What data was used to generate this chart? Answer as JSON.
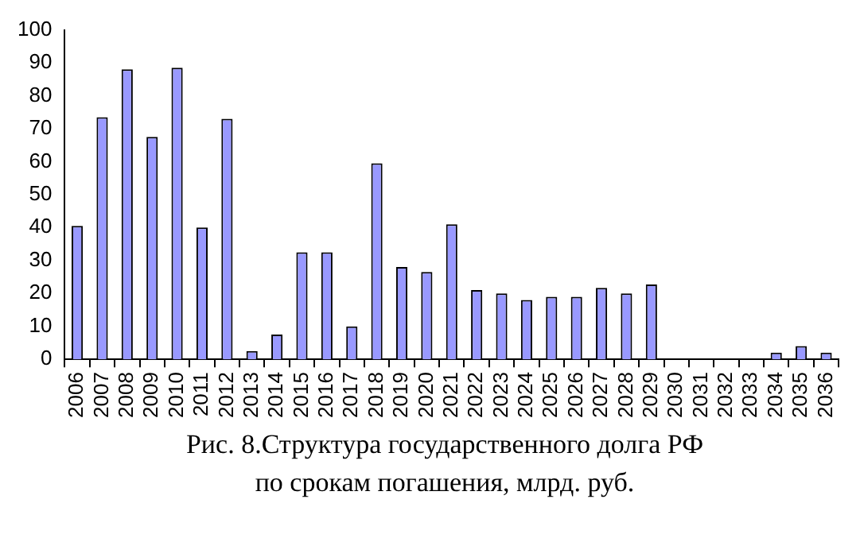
{
  "chart_data": {
    "type": "bar",
    "title": "Рис. 8.Структура государственного долга РФ\nпо срокам погашения, млрд. руб.",
    "categories": [
      "2006",
      "2007",
      "2008",
      "2009",
      "2010",
      "2011",
      "2012",
      "2013",
      "2014",
      "2015",
      "2016",
      "2017",
      "2018",
      "2019",
      "2020",
      "2021",
      "2022",
      "2023",
      "2024",
      "2025",
      "2026",
      "2027",
      "2028",
      "2029",
      "2030",
      "2031",
      "2032",
      "2033",
      "2034",
      "2035",
      "2036"
    ],
    "values": [
      40.5,
      73.5,
      88,
      67.5,
      88.5,
      40,
      73,
      2.5,
      7.5,
      32.5,
      32.5,
      10,
      59.5,
      28,
      26.5,
      41,
      21,
      20,
      18,
      19,
      19,
      21.7,
      20,
      22.7,
      0,
      0,
      0,
      0,
      2,
      4,
      2
    ],
    "color": "#9999ff",
    "ylim": [
      0,
      100
    ],
    "yticks": [
      0,
      10,
      20,
      30,
      40,
      50,
      60,
      70,
      80,
      90,
      100
    ],
    "grid": false,
    "legend": false
  }
}
